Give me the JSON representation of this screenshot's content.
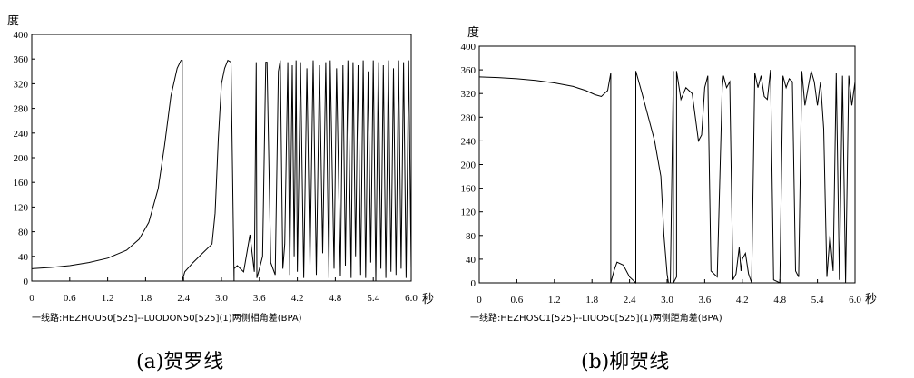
{
  "chart_data": [
    {
      "type": "line",
      "ylabel": "度",
      "xlabel": "秒",
      "xlim": [
        0,
        6.0
      ],
      "ylim": [
        0,
        400
      ],
      "xticks": [
        "0",
        "0.6",
        "1.2",
        "1.8",
        "2.4",
        "3.0",
        "3.6",
        "4.2",
        "4.8",
        "5.4",
        "6.0"
      ],
      "yticks": [
        "0",
        "40",
        "80",
        "120",
        "160",
        "200",
        "240",
        "280",
        "320",
        "360",
        "400"
      ],
      "caption": "一线路:HEZHOU50[525]--LUODON50[525](1)两侧相角差(BPA)",
      "title": "(a)贺罗线",
      "series": [
        {
          "x": [
            0,
            0.3,
            0.6,
            0.9,
            1.2,
            1.5,
            1.7,
            1.85,
            2.0,
            2.1,
            2.2,
            2.3,
            2.36,
            2.38,
            2.38,
            2.42,
            2.55,
            2.7,
            2.85,
            2.9,
            2.95,
            3.0,
            3.05,
            3.1,
            3.15,
            3.2,
            3.2,
            3.25,
            3.35,
            3.45,
            3.52,
            3.55,
            3.56,
            3.6,
            3.65,
            3.7,
            3.72,
            3.78,
            3.85,
            3.9,
            3.93,
            3.97,
            4.0,
            4.05,
            4.08,
            4.12,
            4.15,
            4.18,
            4.2,
            4.25,
            4.3,
            4.35,
            4.4,
            4.45,
            4.5,
            4.55,
            4.6,
            4.65,
            4.7,
            4.72,
            4.78,
            4.82,
            4.88,
            4.92,
            4.96,
            5.0,
            5.05,
            5.08,
            5.12,
            5.16,
            5.2,
            5.24,
            5.28,
            5.32,
            5.36,
            5.4,
            5.44,
            5.48,
            5.52,
            5.56,
            5.6,
            5.64,
            5.68,
            5.72,
            5.76,
            5.8,
            5.84,
            5.88,
            5.92,
            5.96,
            6.0
          ],
          "y": [
            20,
            22,
            25,
            30,
            37,
            50,
            68,
            95,
            150,
            220,
            300,
            345,
            358,
            358,
            0,
            15,
            30,
            45,
            60,
            110,
            230,
            320,
            345,
            358,
            355,
            0,
            20,
            25,
            15,
            75,
            15,
            355,
            5,
            20,
            40,
            355,
            355,
            30,
            10,
            340,
            358,
            20,
            60,
            355,
            10,
            350,
            40,
            358,
            15,
            355,
            5,
            345,
            25,
            358,
            10,
            350,
            45,
            355,
            5,
            358,
            20,
            345,
            8,
            350,
            25,
            358,
            5,
            355,
            40,
            350,
            10,
            358,
            5,
            340,
            30,
            358,
            0,
            355,
            20,
            350,
            5,
            358,
            15,
            345,
            10,
            358,
            20,
            355,
            5,
            358,
            20
          ]
        }
      ]
    },
    {
      "type": "line",
      "ylabel": "度",
      "xlabel": "秒",
      "xlim": [
        0,
        6.0
      ],
      "ylim": [
        0,
        400
      ],
      "xticks": [
        "0",
        "0.6",
        "1.2",
        "1.8",
        "2.4",
        "3.0",
        "3.6",
        "4.2",
        "4.8",
        "5.4",
        "6.0"
      ],
      "yticks": [
        "0",
        "40",
        "80",
        "120",
        "160",
        "200",
        "240",
        "280",
        "320",
        "360",
        "400"
      ],
      "caption": "一线路:HEZHOSC1[525]--LIUO50[525](1)两侧距角差(BPA)",
      "title": "(b)柳贺线",
      "series": [
        {
          "x": [
            0,
            0.3,
            0.6,
            0.9,
            1.2,
            1.5,
            1.7,
            1.85,
            1.95,
            2.05,
            2.1,
            2.1,
            2.15,
            2.2,
            2.3,
            2.4,
            2.5,
            2.5,
            2.6,
            2.7,
            2.8,
            2.9,
            2.95,
            3.0,
            3.02,
            3.05,
            3.1,
            3.1,
            3.15,
            3.15,
            3.22,
            3.3,
            3.4,
            3.5,
            3.55,
            3.6,
            3.65,
            3.7,
            3.8,
            3.88,
            3.9,
            3.95,
            4.0,
            4.05,
            4.1,
            4.15,
            4.18,
            4.2,
            4.25,
            4.3,
            4.35,
            4.4,
            4.45,
            4.5,
            4.55,
            4.6,
            4.65,
            4.7,
            4.8,
            4.85,
            4.9,
            4.95,
            5.0,
            5.05,
            5.1,
            5.15,
            5.2,
            5.25,
            5.3,
            5.35,
            5.4,
            5.45,
            5.5,
            5.55,
            5.6,
            5.65,
            5.7,
            5.75,
            5.8,
            5.85,
            5.9,
            5.95,
            6.0
          ],
          "y": [
            348,
            347,
            345,
            342,
            338,
            332,
            325,
            318,
            315,
            325,
            355,
            0,
            20,
            35,
            30,
            10,
            0,
            358,
            320,
            280,
            240,
            180,
            80,
            15,
            0,
            0,
            358,
            0,
            10,
            358,
            310,
            330,
            320,
            240,
            250,
            330,
            350,
            20,
            10,
            330,
            350,
            330,
            340,
            5,
            15,
            60,
            20,
            40,
            50,
            15,
            0,
            355,
            330,
            350,
            315,
            310,
            360,
            5,
            0,
            350,
            330,
            345,
            340,
            20,
            10,
            358,
            300,
            330,
            358,
            340,
            300,
            340,
            260,
            10,
            80,
            20,
            355,
            5,
            350,
            0,
            350,
            300,
            340
          ]
        }
      ]
    }
  ]
}
